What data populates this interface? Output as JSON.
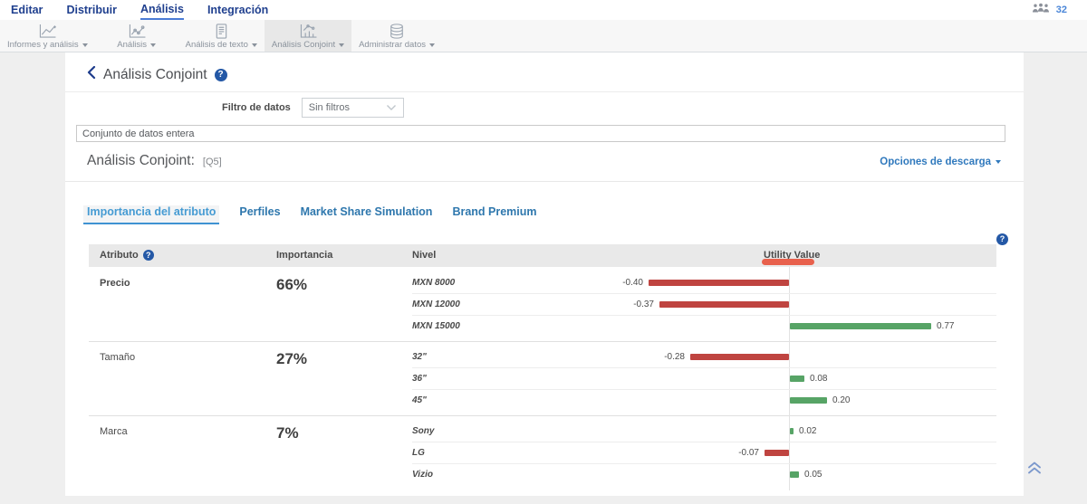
{
  "nav": {
    "items": [
      "Editar",
      "Distribuir",
      "Análisis",
      "Integración"
    ],
    "active_item": "Análisis",
    "respondents_count": "32"
  },
  "toolbar": {
    "items": [
      {
        "label": "Informes y análisis",
        "icon": "reports-line-chart-icon"
      },
      {
        "label": "Análisis",
        "icon": "analysis-scatter-chart-icon"
      },
      {
        "label": "Análisis de texto",
        "icon": "text-document-icon"
      },
      {
        "label": "Análisis Conjoint",
        "icon": "conjoint-chart-icon"
      },
      {
        "label": "Administrar datos",
        "icon": "database-icon"
      }
    ],
    "active_label": "Análisis Conjoint"
  },
  "page": {
    "back_title": "Análisis Conjoint",
    "help_glyph": "?",
    "filter_label": "Filtro de datos",
    "filter_value": "Sin filtros",
    "dataset_text": "Conjunto de datos entera",
    "section_title": "Análisis Conjoint:",
    "question_ref": "[Q5]",
    "download_label": "Opciones de descarga"
  },
  "tabs": {
    "items": [
      "Importancia del atributo",
      "Perfiles",
      "Market Share Simulation",
      "Brand Premium"
    ],
    "active_item": "Importancia del atributo"
  },
  "table": {
    "columns": [
      "Atributo",
      "Importancia",
      "Nivel",
      "Utility Value"
    ],
    "groups": [
      {
        "attribute": "Precio",
        "importance": "66%",
        "levels": [
          {
            "name": "MXN 8000",
            "value": -0.4
          },
          {
            "name": "MXN 12000",
            "value": -0.37
          },
          {
            "name": "MXN 15000",
            "value": 0.77
          }
        ]
      },
      {
        "attribute": "Tamaño",
        "importance": "27%",
        "levels": [
          {
            "name": "32\"",
            "value": -0.28
          },
          {
            "name": "36\"",
            "value": 0.08
          },
          {
            "name": "45\"",
            "value": 0.2
          }
        ]
      },
      {
        "attribute": "Marca",
        "importance": "7%",
        "levels": [
          {
            "name": "Sony",
            "value": 0.02
          },
          {
            "name": "LG",
            "value": -0.07
          },
          {
            "name": "Vizio",
            "value": 0.05
          }
        ]
      }
    ]
  },
  "chart_data": {
    "type": "bar",
    "orientation": "horizontal-diverging",
    "title": "Utility Value",
    "categories": [
      "MXN 8000",
      "MXN 12000",
      "MXN 15000",
      "32\"",
      "36\"",
      "45\"",
      "Sony",
      "LG",
      "Vizio"
    ],
    "values": [
      -0.4,
      -0.37,
      0.77,
      -0.28,
      0.08,
      0.2,
      0.02,
      -0.07,
      0.05
    ],
    "xlim": [
      -0.45,
      0.85
    ],
    "grid": false,
    "legend": "none"
  },
  "colors": {
    "negative_bar": "#bf4440",
    "positive_bar": "#57a466",
    "annotation_marker": "#e8614d",
    "accent_blue": "#2e77ad",
    "nav_blue": "#20408f"
  }
}
